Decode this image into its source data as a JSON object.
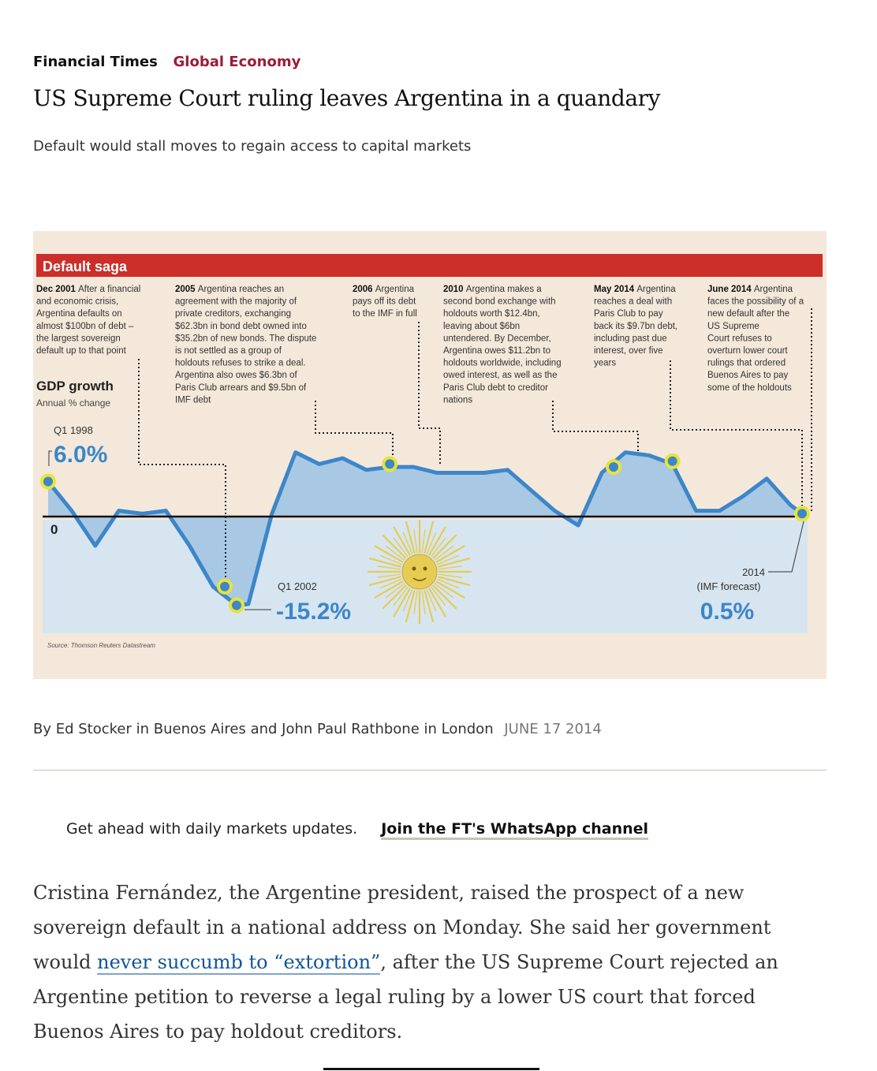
{
  "header": {
    "brand": "Financial Times",
    "section": "Global Economy",
    "headline": "US Supreme Court ruling leaves Argentina in a quandary",
    "standfirst": "Default would stall moves to regain access to capital markets"
  },
  "graphic": {
    "banner": "Default saga",
    "events": [
      {
        "date": "Dec 2001",
        "lines": [
          "After a financial",
          "and economic crisis,",
          "Argentina defaults on",
          "almost $100bn of debt –",
          "the largest sovereign",
          "default up to that point"
        ]
      },
      {
        "date": "2005",
        "lines": [
          "Argentina reaches an",
          "agreement with the majority of",
          "private creditors, exchanging",
          "$62.3bn in bond debt owned into",
          "$35.2bn of new bonds. The dispute",
          "is not settled as a group of",
          "holdouts refuses to strike a deal.",
          "Argentina also owes $6.3bn of",
          "Paris Club arrears and $9.5bn of",
          "IMF debt"
        ]
      },
      {
        "date": "2006",
        "lines": [
          "Argentina",
          "pays off its debt",
          "to the IMF in full"
        ]
      },
      {
        "date": "2010",
        "lines": [
          "Argentina makes a",
          "second bond exchange with",
          "holdouts worth $12.4bn,",
          "leaving about $6bn",
          "untendered. By December,",
          "Argentina owes $11.2bn to",
          "holdouts worldwide, including",
          "owed interest, as well as the",
          "Paris Club debt to creditor",
          "nations"
        ]
      },
      {
        "date": "May 2014",
        "lines": [
          "Argentina",
          "reaches a deal with",
          "Paris Club to pay",
          "back its $9.7bn debt,",
          "including past due",
          "interest, over five",
          "years"
        ]
      },
      {
        "date": "June 2014",
        "lines": [
          "Argentina",
          "faces the possibility of a",
          "new default after the",
          "US Supreme",
          "Court refuses to",
          "overturn lower court",
          "rulings that ordered",
          "Buenos Aires to pay",
          "some of the holdouts"
        ]
      }
    ],
    "gdp_title": "GDP growth",
    "gdp_subtitle": "Annual % change",
    "zero_label": "0",
    "start_period": "Q1 1998",
    "start_value": "6.0%",
    "low_period": "Q1 2002",
    "low_value": "-15.2%",
    "end_period": "2014",
    "end_note": "(IMF forecast)",
    "end_value": "0.5%",
    "source": "Source: Thomson Reuters Datastream",
    "colors": {
      "banner": "#cc2e2a",
      "line": "#3c86c9",
      "area_pos": "#a9c8e3",
      "area_neg": "#d6e5f0",
      "marker": "#e8e339",
      "sun": "#e6cc52"
    }
  },
  "chart_data": {
    "type": "area",
    "title": "GDP growth",
    "ylabel": "Annual % change",
    "x": [
      1998.0,
      1998.5,
      1999.0,
      1999.5,
      2000.0,
      2000.5,
      2001.0,
      2001.5,
      2002.0,
      2002.25,
      2002.75,
      2003.25,
      2003.75,
      2004.25,
      2004.75,
      2005.25,
      2005.75,
      2006.25,
      2006.75,
      2007.25,
      2007.75,
      2008.25,
      2008.75,
      2009.25,
      2009.75,
      2010.25,
      2010.75,
      2011.25,
      2011.75,
      2012.25,
      2012.75,
      2013.25,
      2013.75,
      2014.0
    ],
    "values": [
      6.0,
      1.0,
      -5.0,
      1.0,
      0.5,
      1.0,
      -5.0,
      -12.0,
      -15.2,
      -15.0,
      0.5,
      11.0,
      9.0,
      10.0,
      8.0,
      8.5,
      8.5,
      7.5,
      7.5,
      7.5,
      8.0,
      4.5,
      1.0,
      -1.5,
      7.5,
      11.0,
      10.5,
      9.0,
      1.0,
      1.0,
      3.5,
      6.5,
      2.0,
      0.5
    ],
    "markers": [
      {
        "label": "Dec 2001",
        "x": 2001.75,
        "y": -12.0
      },
      {
        "label": "Q1 2002",
        "x": 2002.0,
        "y": -15.2
      },
      {
        "label": "2005",
        "x": 2005.25,
        "y": 9.0
      },
      {
        "label": "2010",
        "x": 2010.0,
        "y": 8.5
      },
      {
        "label": "May 2014",
        "x": 2011.25,
        "y": 9.5
      },
      {
        "label": "2014 (IMF forecast)",
        "x": 2014.0,
        "y": 0.5
      }
    ],
    "ylim": [
      -17,
      11
    ]
  },
  "byline": {
    "authors": "By Ed Stocker in Buenos Aires and John Paul Rathbone in London",
    "date": "JUNE 17 2014"
  },
  "promo": {
    "text": "Get ahead with daily markets updates.",
    "link": "Join the FT's WhatsApp channel"
  },
  "article": {
    "p1_before": "Cristina Fernández, the Argentine president, raised the prospect of a new sovereign default in a national address on Monday. She said her government would ",
    "p1_link": "never succumb to “extortion”",
    "p1_after": ", after the US Supreme Court rejected an Argentine petition to reverse a legal ruling by a lower US court that forced Buenos Aires to pay holdout creditors."
  }
}
